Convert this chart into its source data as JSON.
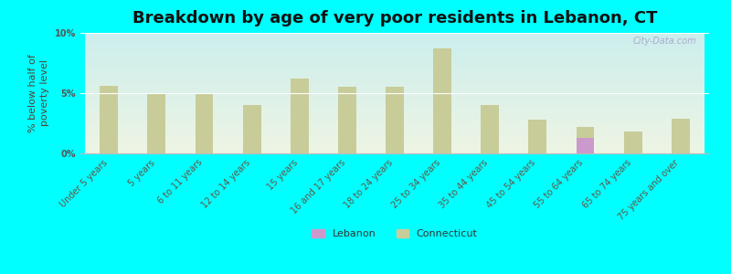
{
  "title": "Breakdown by age of very poor residents in Lebanon, CT",
  "ylabel": "% below half of\npoverty level",
  "categories": [
    "Under 5 years",
    "5 years",
    "6 to 11 years",
    "12 to 14 years",
    "15 years",
    "16 and 17 years",
    "18 to 24 years",
    "25 to 34 years",
    "35 to 44 years",
    "45 to 54 years",
    "55 to 64 years",
    "65 to 74 years",
    "75 years and over"
  ],
  "connecticut_values": [
    5.6,
    5.0,
    4.9,
    4.0,
    6.2,
    5.5,
    5.5,
    8.7,
    4.0,
    2.8,
    2.2,
    1.8,
    2.9
  ],
  "lebanon_values": [
    0,
    0,
    0,
    0,
    0,
    0,
    0,
    0,
    0,
    0,
    1.3,
    0,
    0
  ],
  "ct_bar_color": "#c8cc99",
  "lb_bar_color": "#cc99cc",
  "bg_color": "#00ffff",
  "plot_bg_top": "#cceeed",
  "plot_bg_bottom": "#eef5e4",
  "ylim": [
    0,
    10
  ],
  "yticks": [
    0,
    5,
    10
  ],
  "ytick_labels": [
    "0%",
    "5%",
    "10%"
  ],
  "title_fontsize": 13,
  "axis_label_fontsize": 8,
  "tick_label_fontsize": 7,
  "legend_labels": [
    "Lebanon",
    "Connecticut"
  ],
  "watermark": "City-Data.com"
}
